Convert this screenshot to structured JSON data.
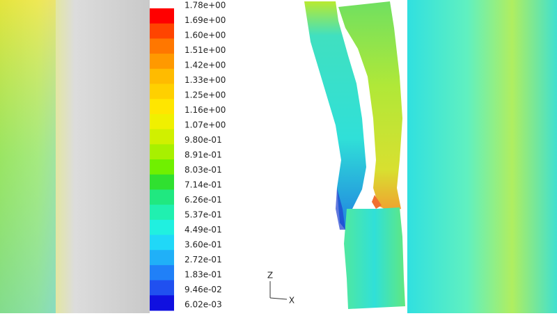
{
  "colorbar": {
    "labels": [
      "1.78e+00",
      "1.69e+00",
      "1.60e+00",
      "1.51e+00",
      "1.42e+00",
      "1.33e+00",
      "1.25e+00",
      "1.16e+00",
      "1.07e+00",
      "9.80e-01",
      "8.91e-01",
      "8.03e-01",
      "7.14e-01",
      "6.26e-01",
      "5.37e-01",
      "4.49e-01",
      "3.60e-01",
      "2.72e-01",
      "1.83e-01",
      "9.46e-02",
      "6.02e-03"
    ]
  },
  "axes": {
    "vertical": "Z",
    "horizontal": "X"
  }
}
